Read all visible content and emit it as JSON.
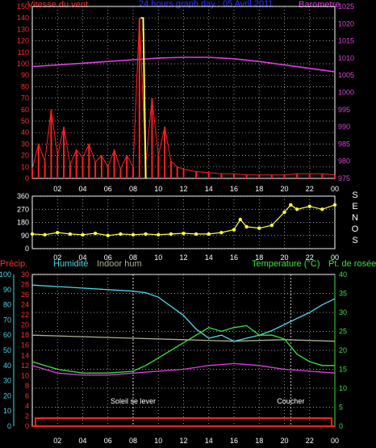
{
  "colors": {
    "bg": "#000000",
    "grid": "#cfcfcf",
    "frame": "#ffffff",
    "wind": "#ff2020",
    "gust_white": "#ffffff",
    "wind_yellow": "#ffff40",
    "pressure": "#e040e0",
    "direction": "#ffff40",
    "precip": "#ff2020",
    "humidity": "#4ad8e8",
    "indoor_hum": "#b0b090",
    "temperature": "#40e040",
    "dewpoint": "#e040e0",
    "inner_temp": "#40e040",
    "axis_left_red": "#ff3030",
    "axis_right_magenta": "#e040e0",
    "axis_cyan": "#4ad8e8",
    "axis_green": "#40e040",
    "title_blue": "#3030ff"
  },
  "chart_data": [
    {
      "type": "line",
      "id": "wind-pressure",
      "title": "24 hours graph day : 05 Avril 2011",
      "left_label": "Vitesse du vent",
      "right_label": "Barometre",
      "y_left_ticks": [
        "0",
        "10",
        "20",
        "30",
        "40",
        "50",
        "60",
        "70",
        "80",
        "90",
        "100",
        "110",
        "120",
        "130",
        "140",
        "150"
      ],
      "y_left_range": [
        0,
        150
      ],
      "y_right_ticks": [
        "975",
        "980",
        "985",
        "990",
        "995",
        "1000",
        "1005",
        "1010",
        "1015",
        "1020",
        "1025"
      ],
      "y_right_range": [
        975,
        1025
      ],
      "x_ticks": [
        "02",
        "04",
        "06",
        "08",
        "10",
        "12",
        "14",
        "16",
        "18",
        "20",
        "22",
        "00"
      ],
      "x_range_hours": [
        0,
        24
      ],
      "grid": true,
      "series": [
        {
          "name": "Barometre",
          "x": [
            0,
            2,
            4,
            6,
            8,
            10,
            12,
            14,
            16,
            18,
            20,
            22,
            24
          ],
          "values": [
            1007.5,
            1008,
            1008.5,
            1009,
            1009.5,
            1010,
            1010.2,
            1010.2,
            1009.8,
            1009,
            1008,
            1007,
            1006
          ]
        },
        {
          "name": "Vitesse du vent",
          "x": [
            0,
            0.5,
            1,
            1.5,
            2,
            2.5,
            3,
            3.5,
            4,
            4.5,
            5,
            5.5,
            6,
            6.5,
            7,
            7.5,
            8,
            8.5,
            9,
            9.5,
            10,
            10.5,
            11,
            11.5,
            12,
            13,
            14,
            15,
            16,
            17,
            18,
            19,
            20,
            21,
            22,
            23,
            24
          ],
          "values": [
            8,
            30,
            15,
            60,
            20,
            45,
            12,
            25,
            18,
            30,
            14,
            20,
            10,
            25,
            8,
            20,
            10,
            140,
            12,
            70,
            20,
            45,
            15,
            10,
            8,
            6,
            5,
            4,
            4,
            3,
            3,
            3,
            3,
            4,
            4,
            4,
            3
          ]
        },
        {
          "name": "Rafale",
          "x": [
            8.6,
            8.8,
            9.0
          ],
          "values": [
            140,
            140,
            0
          ]
        }
      ]
    },
    {
      "type": "scatter",
      "id": "wind-direction",
      "y_ticks": [
        "360",
        "270",
        "180",
        "90",
        "0"
      ],
      "y_range": [
        0,
        360
      ],
      "right_letters": [
        "S",
        "E",
        "N",
        "O",
        "S"
      ],
      "x_ticks": [
        "02",
        "04",
        "06",
        "08",
        "10",
        "12",
        "14",
        "16",
        "18",
        "20",
        "22",
        "00"
      ],
      "x_range_hours": [
        0,
        24
      ],
      "grid": true,
      "series": [
        {
          "name": "Direction",
          "x": [
            0,
            1,
            2,
            3,
            4,
            5,
            6,
            7,
            8,
            9,
            10,
            11,
            12,
            13,
            14,
            15,
            16,
            16.5,
            17,
            18,
            19,
            20,
            20.5,
            21,
            22,
            23,
            24
          ],
          "values": [
            100,
            95,
            110,
            100,
            95,
            105,
            90,
            100,
            95,
            100,
            95,
            100,
            105,
            100,
            100,
            110,
            130,
            200,
            150,
            140,
            160,
            250,
            300,
            270,
            290,
            270,
            300
          ]
        }
      ]
    },
    {
      "type": "line",
      "id": "temp-humidity",
      "labels": {
        "precip": "Précip.",
        "humidity": "Humidité",
        "indoor_hum": "Indoor hum",
        "temperature": "Temperature (°C)",
        "dewpoint": "Pt. de rosée"
      },
      "y_humidity_ticks": [
        "0",
        "10",
        "20",
        "30",
        "40",
        "50",
        "60",
        "70",
        "80",
        "90",
        "100"
      ],
      "y_humidity_range": [
        0,
        100
      ],
      "y_precip_ticks": [
        "0",
        "2",
        "4",
        "6",
        "8",
        "10",
        "12",
        "14",
        "16",
        "18",
        "20",
        "22",
        "24",
        "26",
        "28",
        "30"
      ],
      "y_precip_range": [
        0,
        30
      ],
      "y_temp_ticks": [
        "0",
        "5",
        "10",
        "15",
        "20",
        "25",
        "30",
        "35",
        "40"
      ],
      "y_temp_range": [
        0,
        40
      ],
      "x_ticks": [
        "02",
        "04",
        "06",
        "08",
        "10",
        "12",
        "14",
        "16",
        "18",
        "20",
        "22",
        "00"
      ],
      "x_range_hours": [
        0,
        24
      ],
      "grid": true,
      "annotations": [
        {
          "text": "Soleil se lever",
          "x_hour": 8
        },
        {
          "text": "Coucher",
          "x_hour": 20.5
        }
      ],
      "series": [
        {
          "name": "Humidité",
          "x": [
            0,
            2,
            4,
            6,
            8,
            9,
            10,
            12,
            13,
            14,
            15,
            16,
            17,
            18,
            19,
            20,
            21,
            22,
            23,
            24
          ],
          "values": [
            93,
            92,
            91,
            90,
            89,
            88,
            85,
            73,
            64,
            58,
            60,
            56,
            58,
            60,
            63,
            67,
            71,
            75,
            80,
            84
          ]
        },
        {
          "name": "Indoor hum",
          "x": [
            0,
            4,
            8,
            12,
            16,
            20,
            24
          ],
          "values": [
            60,
            59,
            58,
            57,
            56,
            57,
            56
          ]
        },
        {
          "name": "Temperature",
          "x": [
            0,
            2,
            4,
            6,
            8,
            9,
            10,
            12,
            13,
            14,
            15,
            16,
            17,
            18,
            19,
            20,
            21,
            22,
            23,
            24
          ],
          "values": [
            17,
            15,
            14,
            14,
            14.5,
            16,
            18,
            22,
            24,
            26,
            25,
            26,
            26.5,
            24,
            24,
            23,
            19,
            17,
            16,
            16
          ]
        },
        {
          "name": "Pt. de rosée",
          "x": [
            0,
            2,
            4,
            6,
            8,
            10,
            12,
            14,
            16,
            18,
            20,
            22,
            24
          ],
          "values": [
            16,
            14,
            13.5,
            13.5,
            14,
            14.5,
            15,
            16,
            16.5,
            16,
            15,
            14.5,
            14
          ]
        },
        {
          "name": "Précip.",
          "x": [
            0,
            24
          ],
          "values": [
            0,
            0
          ]
        }
      ]
    }
  ]
}
